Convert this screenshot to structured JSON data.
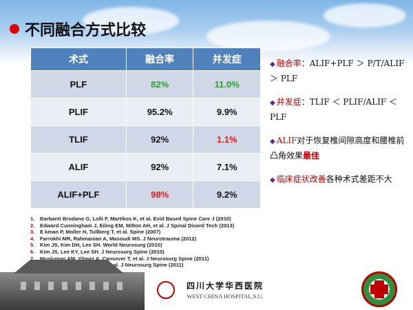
{
  "title": "不同融合方式比较",
  "table": {
    "headers": [
      "术式",
      "融合率",
      "并发症"
    ],
    "rows": [
      {
        "method": "PLF",
        "fusion_rate": "82%",
        "complication": "11.0%"
      },
      {
        "method": "PLIF",
        "fusion_rate": "95.2%",
        "complication": "9.9%"
      },
      {
        "method": "TLIF",
        "fusion_rate": "92%",
        "complication": "1.1%"
      },
      {
        "method": "ALIF",
        "fusion_rate": "92%",
        "complication": "7.1%"
      },
      {
        "method": "ALIF+PLF",
        "fusion_rate": "98%",
        "complication": "9.2%"
      }
    ]
  },
  "notes": {
    "n1_key": "融合率",
    "n1_text": "：ALIF+PLF ＞ P/T/ALIF ＞ PLF",
    "n2_key": "并发症",
    "n2_text": "：TLIF ＜ PLIF/ALIF ＜ PLF",
    "n3_key": "ALIF",
    "n3_text": "对于恢复椎间隙高度和腰椎前凸角效果",
    "n3_hl": "最佳",
    "n4_key": "临床症状改善",
    "n4_text": "各种术式差距不大"
  },
  "references": [
    {
      "num": "1.",
      "text": "Barbanti Brodano G, Lolli F, Martikos K, et al. Evid Based Spine Care J (2010)"
    },
    {
      "num": "2.",
      "text": "Edward Cunningham J, Eiling EM, Milton AH, et al. J Spinal Disord Tech (2013)"
    },
    {
      "num": "3.",
      "text": "E kman P, Moller H, Tullberg T, et al. Spine (2007)"
    },
    {
      "num": "4.",
      "text": "Farrokhi MR, Rahmanian A, Masoudi MS. J Neurotrauma (2012)"
    },
    {
      "num": "5.",
      "text": "Kim JS, Kim DH, Lee SH. World Neurosurg (2010)"
    },
    {
      "num": "6.",
      "text": "Kim JS, Lee KY, Lee SH. J Neurosurg Spine (2010)"
    },
    {
      "num": "7.",
      "text": "Musluman AM, Yilmaz A, Cansever T, et al. J Neurosurg Spine (2011)"
    },
    {
      "num": "8.",
      "text": "Shim JH, Kim WS, Kim JH, et al. J Neurosurg Spine (2011)"
    }
  ],
  "footer": {
    "cn_name": "四川大学华西医院",
    "en_name": "WEST CHINA HOSPITAL,S.U."
  },
  "colors": {
    "header_blue": "#4f81bd",
    "accent_red": "#c00000",
    "green": "#2a9d2a"
  }
}
